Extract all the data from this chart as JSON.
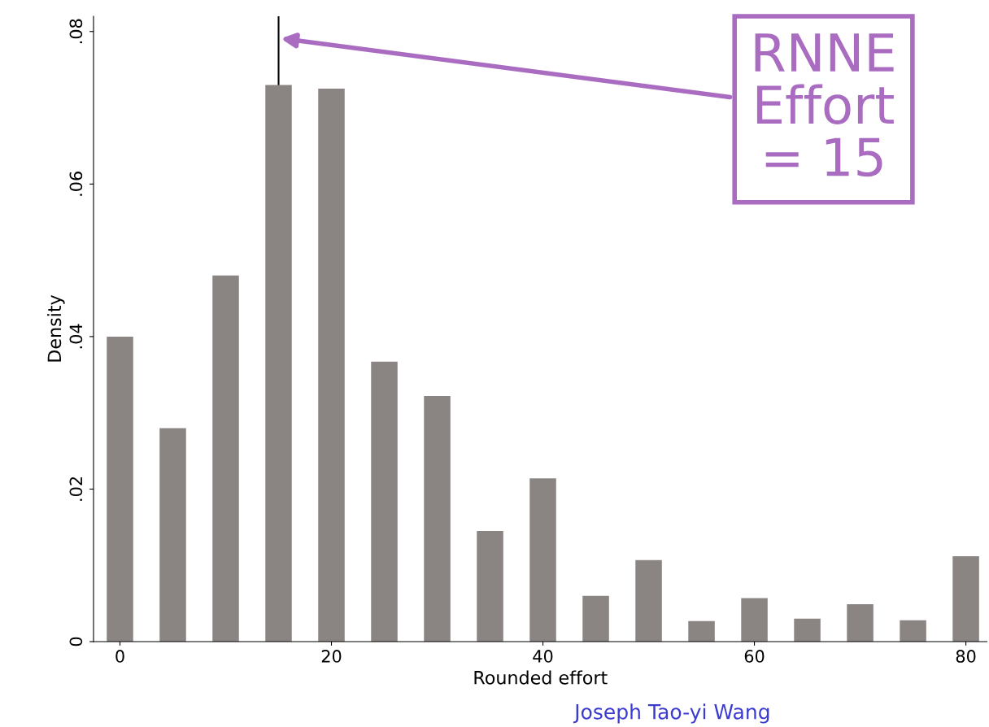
{
  "chart_data": {
    "type": "bar",
    "xlabel": "Rounded effort",
    "ylabel": "Density",
    "x": [
      0,
      5,
      10,
      15,
      20,
      25,
      30,
      35,
      40,
      45,
      50,
      55,
      60,
      65,
      70,
      75,
      80
    ],
    "values": [
      0.04,
      0.028,
      0.048,
      0.073,
      0.0725,
      0.0367,
      0.0322,
      0.0145,
      0.0214,
      0.006,
      0.0107,
      0.0027,
      0.0057,
      0.003,
      0.0049,
      0.0028,
      0.0112
    ],
    "color": "#8a8482",
    "xlim": [
      -2.5,
      82
    ],
    "xticks": [
      0,
      20,
      40,
      60,
      80
    ],
    "ylim": [
      0,
      0.082
    ],
    "yticks": [
      {
        "value": 0,
        "label": "0"
      },
      {
        "value": 0.02,
        "label": ".02"
      },
      {
        "value": 0.04,
        "label": ".04"
      },
      {
        "value": 0.06,
        "label": ".06"
      },
      {
        "value": 0.08,
        "label": ".08"
      }
    ],
    "ref_lines": [
      {
        "axis": "x",
        "value": 15,
        "color": "#000000",
        "label": "RNNE\nEffort\n= 15"
      }
    ],
    "annotations": [
      "Joseph Tao-yi Wang"
    ],
    "grid": false,
    "legend": false
  }
}
